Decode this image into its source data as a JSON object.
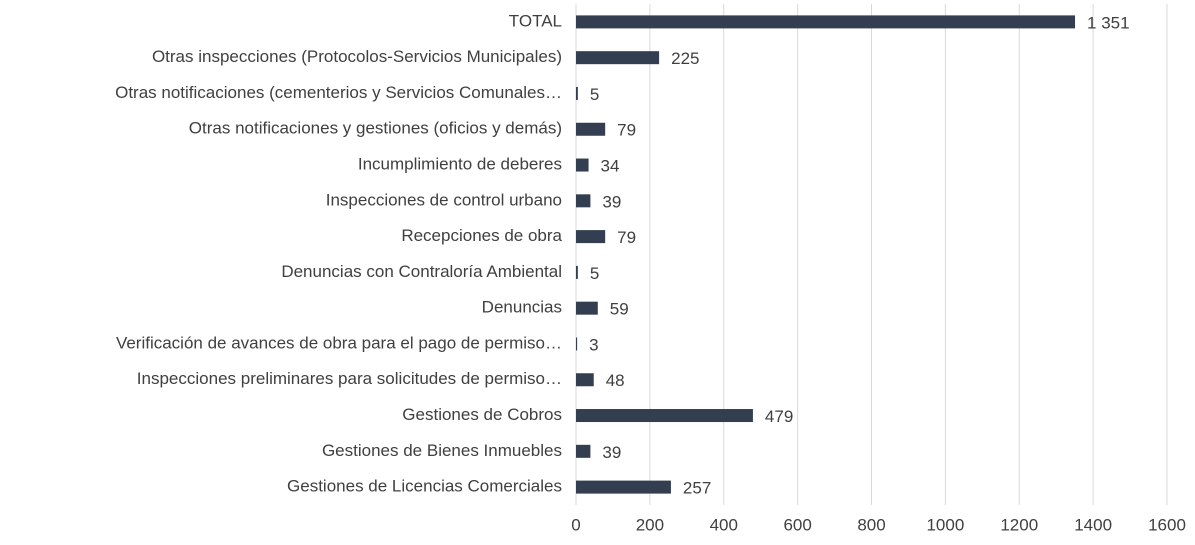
{
  "chart_data": {
    "type": "barh",
    "categories": [
      "TOTAL",
      "Otras inspecciones (Protocolos-Servicios Municipales)",
      "Otras notificaciones (cementerios y Servicios Comunales…",
      "Otras notificaciones y gestiones (oficios y demás)",
      "Incumplimiento de deberes",
      "Inspecciones de control urbano",
      "Recepciones de obra",
      "Denuncias con Contraloría Ambiental",
      "Denuncias",
      "Verificación de avances de obra para el pago de permiso…",
      "Inspecciones preliminares para solicitudes de permiso…",
      "Gestiones de Cobros",
      "Gestiones de Bienes Inmuebles",
      "Gestiones de Licencias Comerciales"
    ],
    "values": [
      1351,
      225,
      5,
      79,
      34,
      39,
      79,
      5,
      59,
      3,
      48,
      479,
      39,
      257
    ],
    "value_labels": [
      "1 351",
      "225",
      "5",
      "79",
      "34",
      "39",
      "79",
      "5",
      "59",
      "3",
      "48",
      "479",
      "39",
      "257"
    ],
    "color": "#333f50",
    "xlim": [
      0,
      1600
    ],
    "xticks": [
      0,
      200,
      400,
      600,
      800,
      1000,
      1200,
      1400,
      1600
    ],
    "grid": true
  }
}
